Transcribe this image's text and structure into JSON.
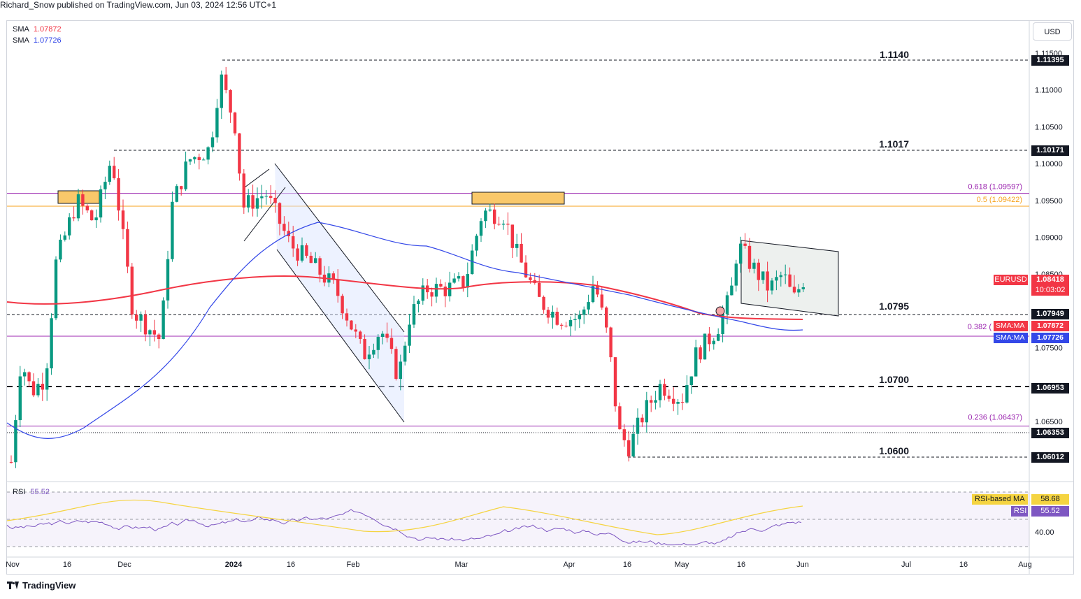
{
  "header": {
    "publisher_text": "Richard_Snow published on TradingView.com, Jun 03, 2024 12:56 UTC+1"
  },
  "indicators": {
    "sma1": {
      "label": "SMA",
      "value": "1.07872",
      "color": "#f23645"
    },
    "sma2": {
      "label": "SMA",
      "value": "1.07726",
      "color": "#3448e8"
    }
  },
  "toolbar": {
    "currency_button": "USD"
  },
  "symbol": {
    "name": "EURUSD",
    "price": "1.08418",
    "countdown": "10:03:02",
    "color": "#f23645"
  },
  "price_scale": {
    "ticks": [
      "1.11500",
      "1.11000",
      "1.10500",
      "1.10000",
      "1.09500",
      "1.09000",
      "1.08500",
      "1.07500",
      "1.06500"
    ],
    "tags": [
      "1.11395",
      "1.10171",
      "1.07949",
      "1.06953",
      "1.06353",
      "1.06012"
    ],
    "ma_tags": [
      {
        "label": "SMA:MA",
        "value": "1.07872",
        "color": "#f23645"
      },
      {
        "label": "SMA:MA",
        "value": "1.07726",
        "color": "#3448e8"
      }
    ]
  },
  "time_axis": {
    "labels": [
      "Nov",
      "16",
      "Dec",
      "2024",
      "16",
      "Feb",
      "Mar",
      "Apr",
      "16",
      "May",
      "16",
      "Jun",
      "Jul",
      "16",
      "Aug"
    ]
  },
  "annotations": {
    "levels": [
      "1.1140",
      "1.1017",
      "1.0795",
      "1.0700",
      "1.0600"
    ],
    "fib_618": "0.618 (1.09597)",
    "fib_05": "0.5 (1.09422)",
    "fib_382": "0.382 (",
    "fib_236": "0.236 (1.06437)"
  },
  "rsi_panel": {
    "label": "RSI",
    "value": "55.52",
    "ma_label": "RSI-based MA",
    "ma_value": "58.68",
    "level_tick": "40.00",
    "line_color": "#7e57c2",
    "ma_color": "#f5d441"
  },
  "footer": {
    "brand": "TradingView"
  },
  "chart_data": {
    "type": "candlestick",
    "title": "EURUSD",
    "ylim": [
      1.058,
      1.1165
    ],
    "series": [
      {
        "name": "SMA",
        "value": 1.07872,
        "color": "#f23645"
      },
      {
        "name": "SMA",
        "value": 1.07726,
        "color": "#3448e8"
      }
    ],
    "levels": [
      1.114,
      1.1017,
      1.0795,
      1.07,
      1.06
    ],
    "fib": [
      {
        "ratio": 0.618,
        "value": 1.09597
      },
      {
        "ratio": 0.5,
        "value": 1.09422
      },
      {
        "ratio": 0.382
      },
      {
        "ratio": 0.236,
        "value": 1.06437
      }
    ],
    "rsi": {
      "value": 55.52,
      "ma": 58.68,
      "ylim": [
        20,
        85
      ]
    }
  }
}
